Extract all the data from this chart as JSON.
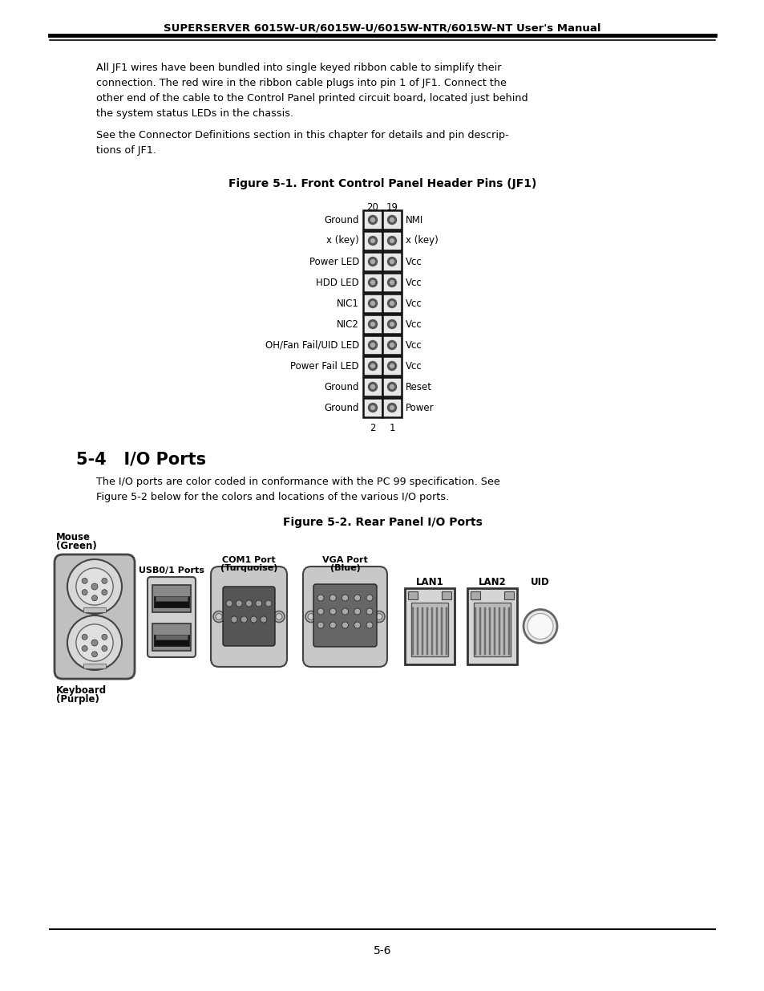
{
  "page_bg": "#ffffff",
  "header_text": "SUPERSERVER 6015W-UR/6015W-U/6015W-NTR/6015W-NT User's Manual",
  "body_text_1_lines": [
    "All JF1 wires have been bundled into single keyed ribbon cable to simplify their",
    "connection. The red wire in the ribbon cable plugs into pin 1 of JF1. Connect the",
    "other end of the cable to the Control Panel printed circuit board, located just behind",
    "the system status LEDs in the chassis."
  ],
  "body_text_2_lines": [
    "See the Connector Definitions section in this chapter for details and pin descrip-",
    "tions of JF1."
  ],
  "fig1_title": "Figure 5-1. Front Control Panel Header Pins (JF1)",
  "pin_rows": [
    {
      "left": "Ground",
      "right": "NMI"
    },
    {
      "left": "x (key)",
      "right": "x (key)"
    },
    {
      "left": "Power LED",
      "right": "Vcc"
    },
    {
      "left": "HDD LED",
      "right": "Vcc"
    },
    {
      "left": "NIC1",
      "right": "Vcc"
    },
    {
      "left": "NIC2",
      "right": "Vcc"
    },
    {
      "left": "OH/Fan Fail/UID LED",
      "right": "Vcc"
    },
    {
      "left": "Power Fail LED",
      "right": "Vcc"
    },
    {
      "left": "Ground",
      "right": "Reset"
    },
    {
      "left": "Ground",
      "right": "Power"
    }
  ],
  "section_title": "5-4   I/O Ports",
  "body_text_3_lines": [
    "The I/O ports are color coded in conformance with the PC 99 specification. See",
    "Figure 5-2 below for the colors and locations of the various I/O ports."
  ],
  "fig2_title": "Figure 5-2. Rear Panel I/O Ports",
  "page_number": "5-6"
}
